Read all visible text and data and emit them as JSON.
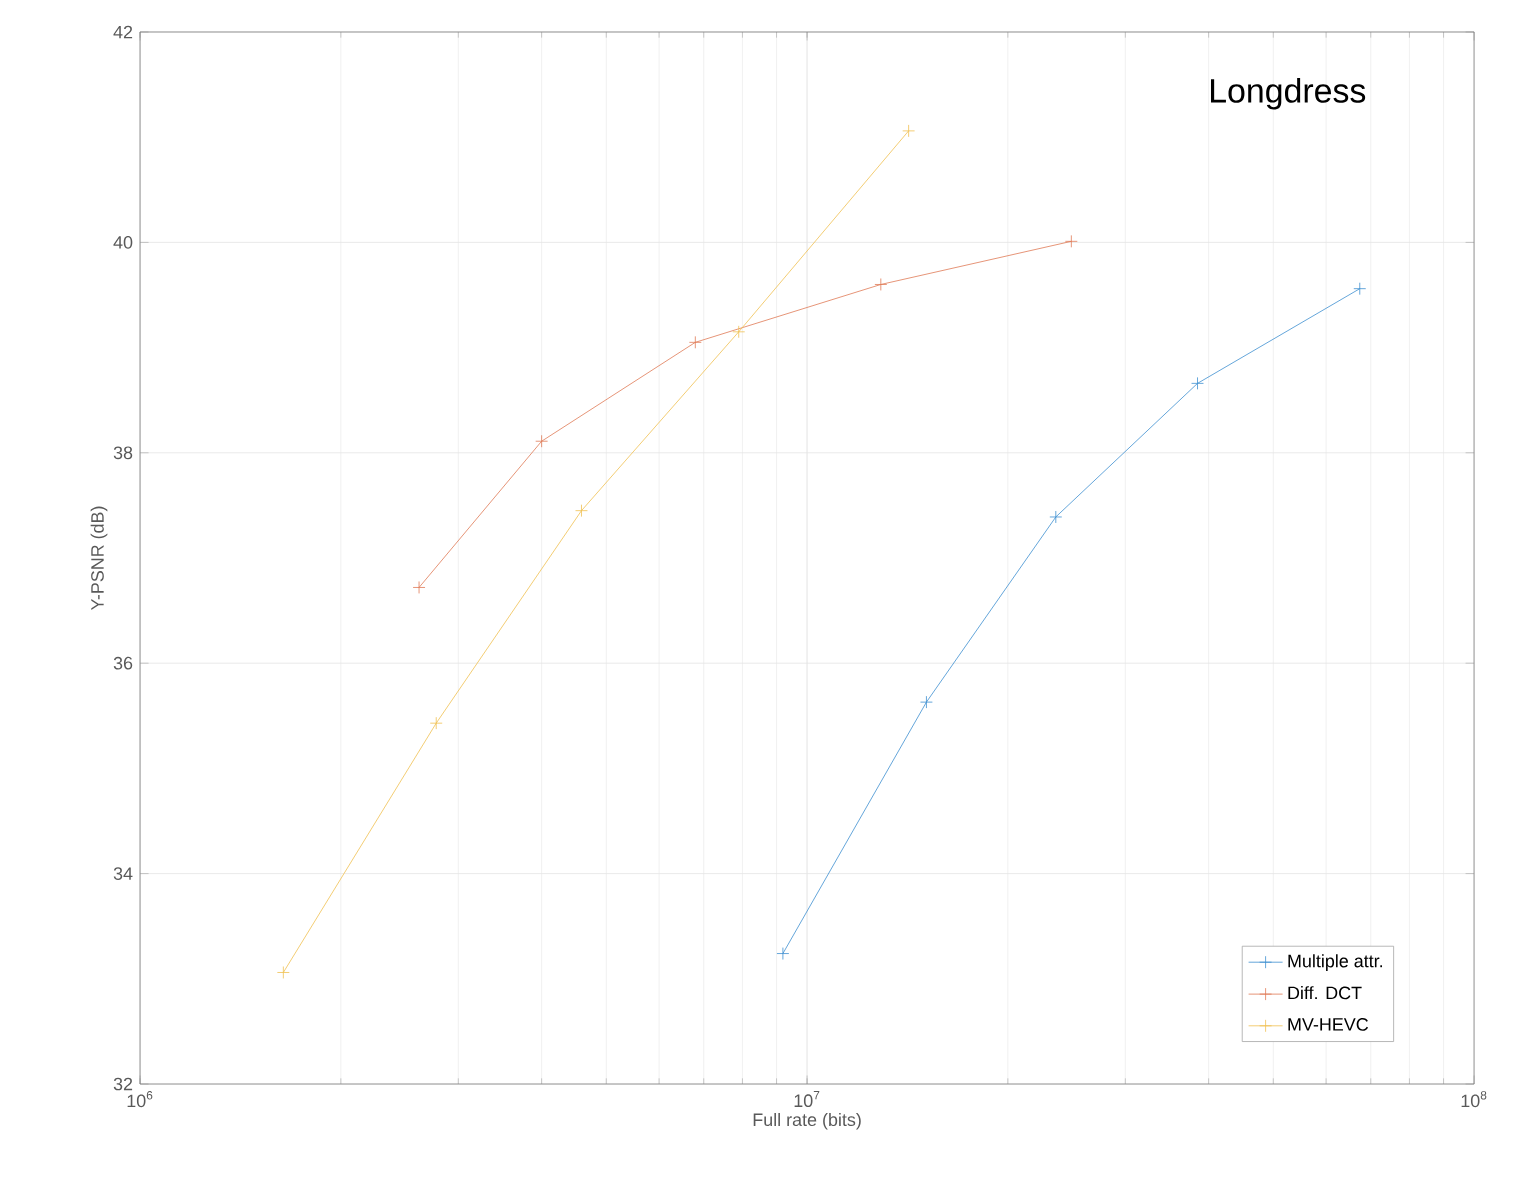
{
  "chart_data": {
    "type": "line",
    "title": "Longdress",
    "xlabel": "Full rate (bits)",
    "ylabel": "Y-PSNR (dB)",
    "log": "x",
    "xlim": [
      1000000,
      100000000
    ],
    "xticks": [
      {
        "value": 1000000,
        "label": "10$^{6}$"
      },
      {
        "value": 10000000,
        "label": "10$^{7}$"
      },
      {
        "value": 100000000,
        "label": "10$^{8}$"
      }
    ],
    "ylim": [
      32,
      42
    ],
    "yticks": [
      32,
      34,
      36,
      38,
      40,
      42
    ],
    "grid": true,
    "legend": "bottom right",
    "marker": "cross",
    "line_style": "solid",
    "series": [
      {
        "name": "Multiple attr.",
        "color": "#3d8fd1",
        "x": [
          9200000,
          15100000,
          23600000,
          38500000,
          67400000
        ],
        "values": [
          33.24,
          35.63,
          37.39,
          38.66,
          39.56
        ]
      },
      {
        "name": "Diff. DCT",
        "color": "#e07a55",
        "x": [
          2620000,
          4000000,
          6800000,
          12900000,
          24900000
        ],
        "values": [
          36.72,
          38.11,
          39.05,
          39.6,
          40.01
        ]
      },
      {
        "name": "MV-HEVC",
        "color": "#f0c050",
        "x": [
          1640000,
          2780000,
          4590000,
          7900000,
          14200000
        ],
        "values": [
          33.06,
          35.43,
          37.45,
          39.15,
          41.06
        ]
      }
    ]
  }
}
